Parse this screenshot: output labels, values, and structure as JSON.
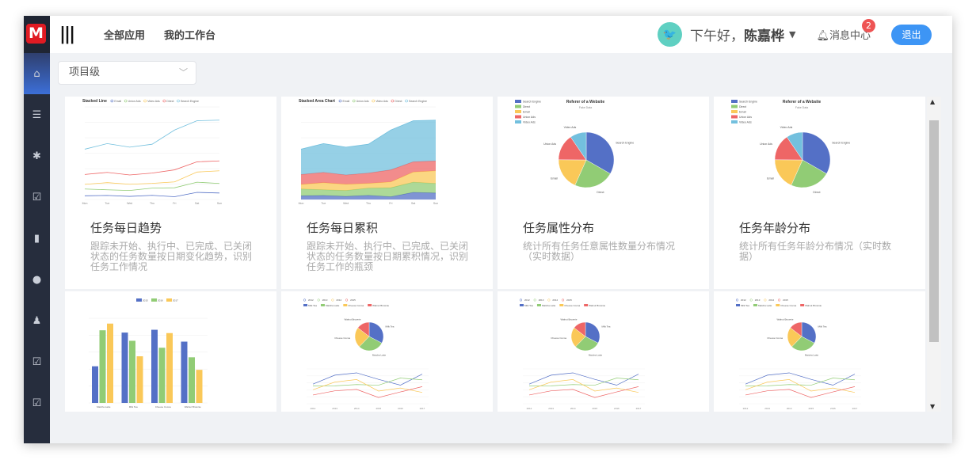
{
  "header": {
    "logo": "M",
    "nav": [
      "全部应用",
      "我的工作台"
    ],
    "greeting": "下午好，",
    "user": "陈嘉桦",
    "messages_label": "消息中心",
    "messages_count": "2",
    "logout": "退出"
  },
  "sidebar": {
    "items": [
      "home-icon",
      "list-icon",
      "bug-icon",
      "clipboard-check-icon",
      "bar-chart-icon",
      "globe-icon",
      "user-icon",
      "clipboard-check-icon",
      "clipboard-check-icon"
    ],
    "active": 0
  },
  "filter": {
    "value": "项目级"
  },
  "colors": {
    "blue": "#5470c6",
    "green": "#91cc75",
    "yellow": "#fac858",
    "red": "#ee6666",
    "cyan": "#73c0de",
    "accent": "#3d95f5"
  },
  "cards": [
    {
      "title": "任务每日趋势",
      "desc": "跟踪未开始、执行中、已完成、已关闭状态的任务数量按日期变化趋势，识别任务工作情况",
      "thumb": {
        "type": "line",
        "title": "Stacked Line",
        "legend": [
          "Email",
          "Union Ads",
          "Video Ads",
          "Direct",
          "Search Engine"
        ],
        "x": [
          "Mon",
          "Tue",
          "Wed",
          "Thu",
          "Fri",
          "Sat",
          "Sun"
        ],
        "ymax": 3000,
        "series": [
          [
            120,
            132,
            101,
            134,
            90,
            230,
            210
          ],
          [
            220,
            182,
            191,
            234,
            290,
            330,
            310
          ],
          [
            150,
            232,
            201,
            154,
            190,
            330,
            410
          ],
          [
            320,
            332,
            301,
            334,
            390,
            330,
            320
          ],
          [
            820,
            932,
            901,
            934,
            1290,
            1330,
            1320
          ]
        ]
      }
    },
    {
      "title": "任务每日累积",
      "desc": "跟踪未开始、执行中、已完成、已关闭状态的任务数量按日期累积情况，识别任务工作的瓶颈",
      "thumb": {
        "type": "area",
        "title": "Stacked Area Chart",
        "legend": [
          "Email",
          "Union Ads",
          "Video Ads",
          "Direct",
          "Search Engine"
        ],
        "x": [
          "Mon",
          "Tue",
          "Wed",
          "Thu",
          "Fri",
          "Sat",
          "Sun"
        ],
        "ymax": 3000,
        "series": [
          [
            120,
            132,
            101,
            134,
            90,
            230,
            210
          ],
          [
            220,
            182,
            191,
            234,
            290,
            330,
            310
          ],
          [
            150,
            232,
            201,
            154,
            190,
            330,
            410
          ],
          [
            320,
            332,
            301,
            334,
            390,
            330,
            320
          ],
          [
            820,
            932,
            901,
            934,
            1290,
            1330,
            1320
          ]
        ]
      }
    },
    {
      "title": "任务属性分布",
      "desc": "统计所有任务任意属性数量分布情况（实时数据）",
      "thumb": {
        "type": "pie",
        "title": "Referer of a Website",
        "subtitle": "Fake Data",
        "labels": [
          "Search Engine",
          "Direct",
          "Email",
          "Union Ads",
          "Video Ads"
        ],
        "values": [
          1048,
          735,
          580,
          484,
          300
        ]
      }
    },
    {
      "title": "任务年龄分布",
      "desc": "统计所有任务年龄分布情况（实时数据）",
      "thumb": {
        "type": "pie",
        "title": "Referer of a Website",
        "subtitle": "Fake Data",
        "labels": [
          "Search Engine",
          "Direct",
          "Email",
          "Union Ads",
          "Video Ads"
        ],
        "values": [
          1048,
          735,
          580,
          484,
          300
        ]
      }
    },
    {
      "title": "",
      "desc": "",
      "thumb": {
        "type": "bar",
        "legend": [
          "2015",
          "2016",
          "2017"
        ],
        "categories": [
          "Matcha Latte",
          "Milk Tea",
          "Cheese Cocoa",
          "Walnut Brownie"
        ],
        "ymax": 100,
        "series": [
          [
            43.3,
            83.1,
            86.4,
            72.4
          ],
          [
            85.8,
            73.4,
            65.2,
            53.9
          ],
          [
            93.7,
            55.1,
            82.5,
            39.1
          ]
        ]
      }
    },
    {
      "title": "",
      "desc": "",
      "thumb": {
        "type": "share",
        "legend": [
          "2012",
          "2013",
          "2014",
          "2015",
          "Milk Tea",
          "Matcha Latte",
          "Cheese Cocoa",
          "Walnut Brownie"
        ],
        "x": [
          "2012",
          "2013",
          "2014",
          "2015",
          "2016",
          "2017"
        ],
        "labels": [
          "Milk Tea",
          "Matcha Latte",
          "Cheese Cocoa",
          "Walnut Brownie"
        ],
        "series": [
          [
            56.5,
            82.1,
            88.7,
            70.1,
            53.4,
            85.1
          ],
          [
            51.1,
            51.4,
            55.1,
            53.3,
            73.8,
            68.7
          ],
          [
            40.1,
            62.2,
            69.5,
            36.4,
            45.2,
            32.5
          ],
          [
            25.2,
            37.1,
            41.2,
            18,
            33.9,
            49.1
          ]
        ]
      }
    },
    {
      "title": "",
      "desc": "",
      "thumb": {
        "type": "share",
        "legend": [
          "2012",
          "2013",
          "2014",
          "2015",
          "Milk Tea",
          "Matcha Latte",
          "Cheese Cocoa",
          "Walnut Brownie"
        ],
        "x": [
          "2012",
          "2013",
          "2014",
          "2015",
          "2016",
          "2017"
        ],
        "labels": [
          "Milk Tea",
          "Matcha Latte",
          "Cheese Cocoa",
          "Walnut Brownie"
        ],
        "series": [
          [
            56.5,
            82.1,
            88.7,
            70.1,
            53.4,
            85.1
          ],
          [
            51.1,
            51.4,
            55.1,
            53.3,
            73.8,
            68.7
          ],
          [
            40.1,
            62.2,
            69.5,
            36.4,
            45.2,
            32.5
          ],
          [
            25.2,
            37.1,
            41.2,
            18,
            33.9,
            49.1
          ]
        ]
      }
    },
    {
      "title": "",
      "desc": "",
      "thumb": {
        "type": "share",
        "legend": [
          "2012",
          "2013",
          "2014",
          "2015",
          "Milk Tea",
          "Matcha Latte",
          "Cheese Cocoa",
          "Walnut Brownie"
        ],
        "x": [
          "2012",
          "2013",
          "2014",
          "2015",
          "2016",
          "2017"
        ],
        "labels": [
          "Milk Tea",
          "Matcha Latte",
          "Cheese Cocoa",
          "Walnut Brownie"
        ],
        "series": [
          [
            56.5,
            82.1,
            88.7,
            70.1,
            53.4,
            85.1
          ],
          [
            51.1,
            51.4,
            55.1,
            53.3,
            73.8,
            68.7
          ],
          [
            40.1,
            62.2,
            69.5,
            36.4,
            45.2,
            32.5
          ],
          [
            25.2,
            37.1,
            41.2,
            18,
            33.9,
            49.1
          ]
        ]
      }
    }
  ]
}
